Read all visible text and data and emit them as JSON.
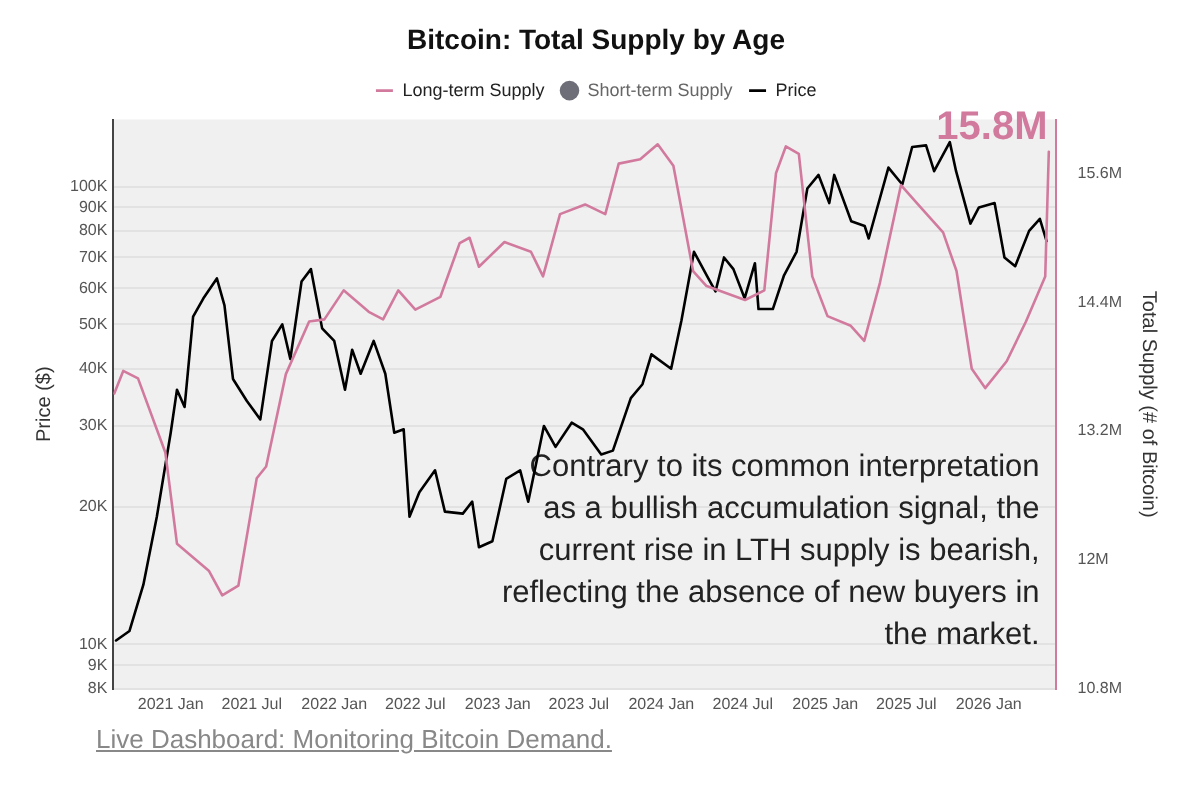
{
  "chart_data": {
    "type": "line",
    "title": "Bitcoin: Total Supply by Age",
    "ylabel": "Price ($)",
    "y2label": "Total Supply (# of Bitcoin)",
    "legend": "top",
    "grid": "y",
    "marker": "none",
    "log": "y",
    "xlim": [
      "2020-08-26",
      "2026-05-30"
    ],
    "xticks": [
      {
        "value": "2021-01-01",
        "label": "2021 Jan"
      },
      {
        "value": "2021-07-01",
        "label": "2021 Jul"
      },
      {
        "value": "2022-01-01",
        "label": "2022 Jan"
      },
      {
        "value": "2022-07-01",
        "label": "2022 Jul"
      },
      {
        "value": "2023-01-01",
        "label": "2023 Jan"
      },
      {
        "value": "2023-07-01",
        "label": "2023 Jul"
      },
      {
        "value": "2024-01-01",
        "label": "2024 Jan"
      },
      {
        "value": "2024-07-01",
        "label": "2024 Jul"
      },
      {
        "value": "2025-01-01",
        "label": "2025 Jan"
      },
      {
        "value": "2025-07-01",
        "label": "2025 Jul"
      },
      {
        "value": "2026-01-01",
        "label": "2026 Jan"
      }
    ],
    "ylim": [
      8000,
      140000
    ],
    "yticks": [
      {
        "value": 8000,
        "label": "8K"
      },
      {
        "value": 9000,
        "label": "9K"
      },
      {
        "value": 10000,
        "label": "10K"
      },
      {
        "value": 20000,
        "label": "20K"
      },
      {
        "value": 30000,
        "label": "30K"
      },
      {
        "value": 40000,
        "label": "40K"
      },
      {
        "value": 50000,
        "label": "50K"
      },
      {
        "value": 60000,
        "label": "60K"
      },
      {
        "value": 70000,
        "label": "70K"
      },
      {
        "value": 80000,
        "label": "80K"
      },
      {
        "value": 90000,
        "label": "90K"
      },
      {
        "value": 100000,
        "label": "100K"
      }
    ],
    "y2lim": [
      10800000,
      16100000
    ],
    "y2ticks": [
      {
        "value": 10800000,
        "label": "10.8M"
      },
      {
        "value": 12000000,
        "label": "12M"
      },
      {
        "value": 13200000,
        "label": "13.2M"
      },
      {
        "value": 14400000,
        "label": "14.4M"
      },
      {
        "value": 15600000,
        "label": "15.6M"
      }
    ],
    "series": [
      {
        "name": "Long-term Supply",
        "color": "#d27a9e",
        "axis": "y2",
        "x": [
          "2020-08-28",
          "2020-09-17",
          "2020-10-20",
          "2020-12-20",
          "2021-01-15",
          "2021-03-27",
          "2021-04-26",
          "2021-06-01",
          "2021-07-12",
          "2021-08-02",
          "2021-09-15",
          "2021-11-06",
          "2021-12-10",
          "2022-01-22",
          "2022-03-19",
          "2022-04-20",
          "2022-05-24",
          "2022-07-01",
          "2022-08-26",
          "2022-10-08",
          "2022-10-30",
          "2022-11-20",
          "2023-01-16",
          "2023-03-16",
          "2023-04-12",
          "2023-05-20",
          "2023-07-15",
          "2023-08-29",
          "2023-09-28",
          "2023-11-15",
          "2023-12-24",
          "2024-01-28",
          "2024-03-12",
          "2024-04-11",
          "2024-07-06",
          "2024-08-18",
          "2024-09-13",
          "2024-10-05",
          "2024-11-03",
          "2024-12-03",
          "2025-01-06",
          "2025-02-27",
          "2025-03-29",
          "2025-05-03",
          "2025-06-19",
          "2025-07-27",
          "2025-09-21",
          "2025-10-21",
          "2025-11-24",
          "2025-12-24",
          "2026-02-10",
          "2026-03-25",
          "2026-05-07",
          "2026-05-15"
        ],
        "values": [
          13550000,
          13760000,
          13690000,
          13000000,
          12150000,
          11900000,
          11670000,
          11760000,
          12760000,
          12870000,
          13730000,
          14220000,
          14240000,
          14510000,
          14310000,
          14240000,
          14510000,
          14330000,
          14450000,
          14950000,
          15000000,
          14730000,
          14960000,
          14870000,
          14640000,
          15220000,
          15310000,
          15220000,
          15690000,
          15730000,
          15870000,
          15670000,
          14690000,
          14550000,
          14420000,
          14510000,
          15600000,
          15850000,
          15780000,
          14640000,
          14270000,
          14180000,
          14040000,
          14580000,
          15490000,
          15310000,
          15050000,
          14690000,
          13780000,
          13600000,
          13850000,
          14220000,
          14640000,
          15800000
        ]
      },
      {
        "name": "Short-term Supply",
        "color": "#6e6e78",
        "axis": "y2"
      },
      {
        "name": "Price",
        "color": "#000000",
        "x": [
          "2020-09-01",
          "2020-10-01",
          "2020-11-01",
          "2020-12-01",
          "2021-01-01",
          "2021-01-15",
          "2021-02-01",
          "2021-02-20",
          "2021-03-15",
          "2021-04-14",
          "2021-05-01",
          "2021-05-20",
          "2021-06-20",
          "2021-07-20",
          "2021-08-15",
          "2021-09-07",
          "2021-09-25",
          "2021-10-20",
          "2021-11-10",
          "2021-12-05",
          "2022-01-01",
          "2022-01-25",
          "2022-02-10",
          "2022-03-01",
          "2022-03-30",
          "2022-04-25",
          "2022-05-15",
          "2022-06-05",
          "2022-06-18",
          "2022-07-10",
          "2022-08-14",
          "2022-09-05",
          "2022-10-15",
          "2022-11-05",
          "2022-11-20",
          "2022-12-20",
          "2023-01-20",
          "2023-02-20",
          "2023-03-10",
          "2023-04-14",
          "2023-05-10",
          "2023-06-15",
          "2023-07-10",
          "2023-08-20",
          "2023-09-15",
          "2023-10-25",
          "2023-11-20",
          "2023-12-10",
          "2024-01-23",
          "2024-02-15",
          "2024-03-14",
          "2024-04-15",
          "2024-05-01",
          "2024-05-20",
          "2024-06-10",
          "2024-07-05",
          "2024-07-28",
          "2024-08-05",
          "2024-09-06",
          "2024-10-01",
          "2024-10-29",
          "2024-11-22",
          "2024-12-17",
          "2025-01-10",
          "2025-01-21",
          "2025-02-28",
          "2025-03-30",
          "2025-04-08",
          "2025-05-22",
          "2025-06-22",
          "2025-07-14",
          "2025-08-14",
          "2025-09-01",
          "2025-10-06",
          "2025-10-20",
          "2025-11-21",
          "2025-12-10",
          "2026-01-14",
          "2026-02-05",
          "2026-03-01",
          "2026-04-01",
          "2026-04-25",
          "2026-05-10"
        ],
        "values": [
          10200,
          10700,
          13500,
          19000,
          29000,
          36000,
          33000,
          52000,
          57000,
          63000,
          55000,
          38000,
          34000,
          31000,
          46000,
          50000,
          42000,
          62000,
          66000,
          49000,
          46000,
          36000,
          44000,
          39000,
          46000,
          39000,
          29000,
          29500,
          19000,
          21500,
          24000,
          19500,
          19300,
          20500,
          16300,
          16800,
          23000,
          24000,
          20500,
          30000,
          27000,
          30500,
          29500,
          26000,
          26500,
          34500,
          37000,
          43000,
          40000,
          51000,
          72000,
          63000,
          59000,
          70000,
          66000,
          57000,
          68000,
          54000,
          54000,
          64000,
          72000,
          99000,
          106000,
          92000,
          106000,
          84000,
          82000,
          77000,
          110000,
          101000,
          122000,
          123000,
          108000,
          125000,
          108000,
          83000,
          90000,
          92000,
          70000,
          67000,
          80000,
          85000,
          76000
        ]
      }
    ],
    "annotations": [
      "15.8M",
      "Contrary to its common interpretation as a bullish accumulation signal, the current rise in LTH supply is bearish, reflecting the absence of new buyers in the market.",
      "Live Dashboard: Monitoring Bitcoin Demand."
    ]
  }
}
